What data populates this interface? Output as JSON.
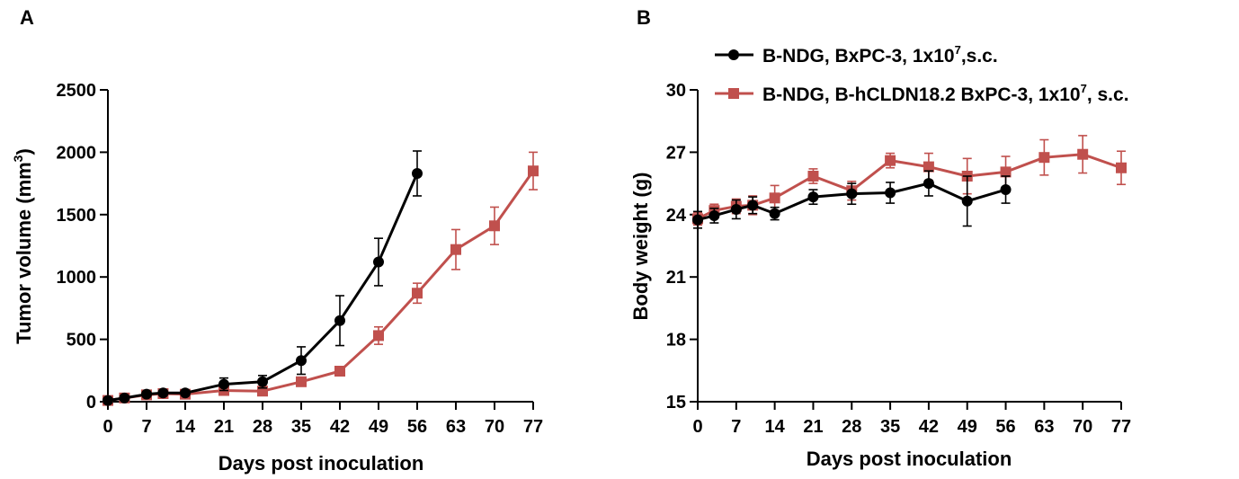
{
  "chart_data": [
    {
      "type": "line",
      "panel_label": "A",
      "title": "",
      "xlabel": "Days post inoculation",
      "ylabel": "Tumor volume (mm",
      "ylabel_sup": "3",
      "ylabel_close": ")",
      "xlim": [
        0,
        77
      ],
      "ylim": [
        0,
        2500
      ],
      "xticks": [
        0,
        7,
        14,
        21,
        28,
        35,
        42,
        49,
        56,
        63,
        70,
        77
      ],
      "yticks": [
        0,
        500,
        1000,
        1500,
        2000,
        2500
      ],
      "xtick_labels": [
        "0",
        "7",
        "14",
        "21",
        "28",
        "35",
        "42",
        "49",
        "56",
        "63",
        "70",
        "77"
      ],
      "ytick_labels": [
        "0",
        "500",
        "1000",
        "1500",
        "2000",
        "2500"
      ],
      "grid": false,
      "series": [
        {
          "color": "#000000",
          "marker": "circle",
          "x": [
            0,
            3,
            7,
            10,
            14,
            21,
            28,
            35,
            42,
            49,
            56
          ],
          "y": [
            10,
            30,
            60,
            70,
            70,
            140,
            160,
            330,
            650,
            1120,
            1830
          ],
          "err": [
            5,
            10,
            20,
            20,
            20,
            50,
            50,
            110,
            200,
            190,
            180
          ]
        },
        {
          "color": "#c0504d",
          "marker": "square",
          "x": [
            0,
            3,
            7,
            10,
            14,
            21,
            28,
            35,
            42,
            49,
            56,
            63,
            70,
            77
          ],
          "y": [
            10,
            30,
            55,
            65,
            60,
            90,
            85,
            160,
            245,
            530,
            870,
            1220,
            1410,
            1850
          ],
          "err": [
            5,
            10,
            15,
            20,
            20,
            25,
            20,
            30,
            30,
            70,
            80,
            160,
            150,
            150
          ]
        }
      ]
    },
    {
      "type": "line",
      "panel_label": "B",
      "title": "",
      "xlabel": "Days post inoculation",
      "ylabel": "Body weight (g)",
      "xlim": [
        0,
        77
      ],
      "ylim": [
        15,
        30
      ],
      "xticks": [
        0,
        7,
        14,
        21,
        28,
        35,
        42,
        49,
        56,
        63,
        70,
        77
      ],
      "yticks": [
        15,
        18,
        21,
        24,
        27,
        30
      ],
      "xtick_labels": [
        "0",
        "7",
        "14",
        "21",
        "28",
        "35",
        "42",
        "49",
        "56",
        "63",
        "70",
        "77"
      ],
      "ytick_labels": [
        "15",
        "18",
        "21",
        "24",
        "27",
        "30"
      ],
      "grid": false,
      "legend_position": "top",
      "series": [
        {
          "name": "B-NDG, BxPC-3, 1x10",
          "name_sup": "7",
          "name_tail": ",s.c.",
          "color": "#000000",
          "marker": "circle",
          "x": [
            0,
            3,
            7,
            10,
            14,
            21,
            28,
            35,
            42,
            49,
            56
          ],
          "y": [
            23.75,
            23.95,
            24.25,
            24.45,
            24.05,
            24.85,
            25.0,
            25.05,
            25.5,
            24.65,
            25.2
          ],
          "err": [
            0.4,
            0.35,
            0.45,
            0.4,
            0.3,
            0.35,
            0.5,
            0.5,
            0.6,
            1.2,
            0.65
          ]
        },
        {
          "name": "B-NDG, B-hCLDN18.2 BxPC-3, 1x10",
          "name_sup": "7",
          "name_tail": ", s.c.",
          "color": "#c0504d",
          "marker": "square",
          "x": [
            0,
            3,
            7,
            10,
            14,
            21,
            28,
            35,
            42,
            49,
            56,
            63,
            70,
            77
          ],
          "y": [
            23.8,
            24.2,
            24.4,
            24.45,
            24.8,
            25.85,
            25.15,
            26.6,
            26.3,
            25.85,
            26.05,
            26.75,
            26.9,
            26.25
          ],
          "err": [
            0.3,
            0.3,
            0.35,
            0.45,
            0.6,
            0.35,
            0.45,
            0.35,
            0.65,
            0.85,
            0.75,
            0.85,
            0.9,
            0.8
          ]
        }
      ]
    }
  ]
}
